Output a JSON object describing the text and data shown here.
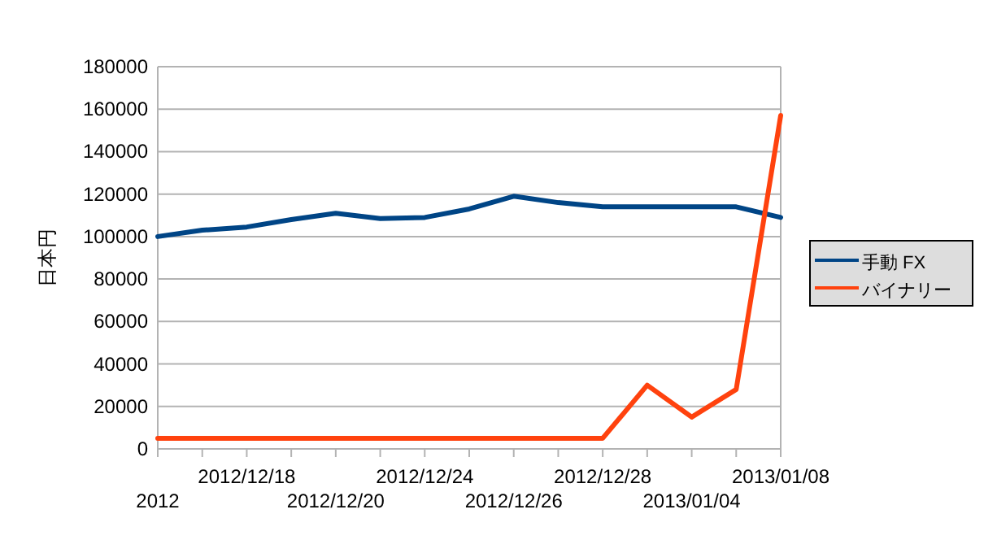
{
  "chart_data": {
    "type": "line",
    "ylabel": "日本円",
    "categories": [
      "2012",
      null,
      "2012/12/18",
      null,
      "2012/12/20",
      null,
      "2012/12/24",
      null,
      "2012/12/26",
      null,
      "2012/12/28",
      null,
      "2013/01/04",
      null,
      "2013/01/08"
    ],
    "series": [
      {
        "name": "手動 FX",
        "color": "#004586",
        "values": [
          100000,
          103000,
          104500,
          108000,
          111000,
          108500,
          109000,
          113000,
          119000,
          116000,
          114000,
          114000,
          114000,
          114000,
          109000
        ]
      },
      {
        "name": "バイナリー",
        "color": "#ff420e",
        "values": [
          5000,
          5000,
          5000,
          5000,
          5000,
          5000,
          5000,
          5000,
          5000,
          5000,
          5000,
          30000,
          15000,
          28000,
          157000
        ]
      }
    ],
    "ylim": [
      0,
      180000
    ],
    "yticks": [
      0,
      20000,
      40000,
      60000,
      80000,
      100000,
      120000,
      140000,
      160000,
      180000
    ],
    "grid": "y",
    "legend": "right",
    "marker": "none",
    "line_style": "solid"
  }
}
